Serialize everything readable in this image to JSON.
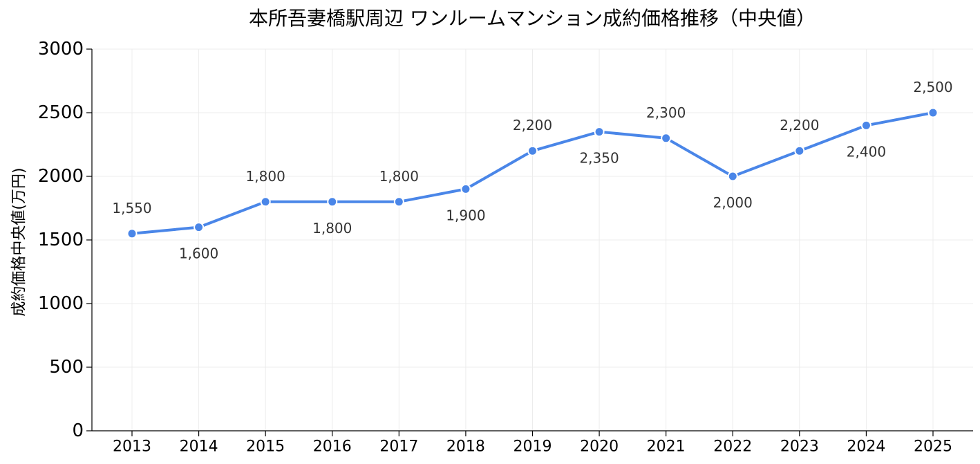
{
  "chart_data": {
    "type": "line",
    "title": "本所吾妻橋駅周辺 ワンルームマンション成約価格推移（中央値）",
    "xlabel": "",
    "ylabel": "成約価格中央値(万円)",
    "x": [
      "2013",
      "2014",
      "2015",
      "2016",
      "2017",
      "2018",
      "2019",
      "2020",
      "2021",
      "2022",
      "2023",
      "2024",
      "2025"
    ],
    "series": [
      {
        "values": [
          1550,
          1600,
          1800,
          1800,
          1800,
          1900,
          2200,
          2350,
          2300,
          2000,
          2200,
          2400,
          2500
        ],
        "data_labels": [
          "1,550",
          "1,600",
          "1,800",
          "1,800",
          "1,800",
          "1,900",
          "2,200",
          "2,350",
          "2,300",
          "2,000",
          "2,200",
          "2,400",
          "2,500"
        ]
      }
    ],
    "ylim": [
      0,
      3000
    ],
    "yticks": [
      0,
      500,
      1000,
      1500,
      2000,
      2500,
      3000
    ],
    "grid": true,
    "legend": "none"
  },
  "colors": {
    "line": "#4a86e8",
    "marker_edge": "#ffffff",
    "axis": "#000000",
    "grid": "#ececec",
    "data_label": "#333333"
  }
}
